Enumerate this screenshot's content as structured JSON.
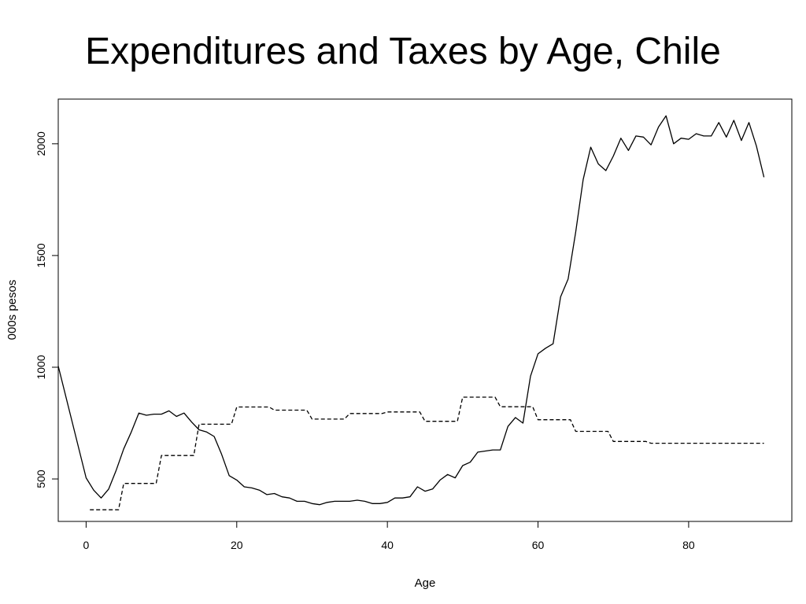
{
  "chart_data": {
    "type": "line",
    "title": "Expenditures and Taxes by Age, Chile",
    "xlabel": "Age",
    "ylabel": "000s pesos",
    "xlim": [
      -3.7,
      93.7
    ],
    "ylim": [
      310,
      2200
    ],
    "xticks": [
      0,
      20,
      40,
      60,
      80
    ],
    "yticks": [
      500,
      1000,
      1500,
      2000
    ],
    "grid": false,
    "series": [
      {
        "style": "solid",
        "color": "#000000",
        "x": [
          -3.7,
          0,
          1,
          2,
          3,
          4,
          5,
          6,
          7,
          8,
          9,
          10,
          11,
          12,
          13,
          14,
          15,
          16,
          17,
          18,
          19,
          20,
          21,
          22,
          23,
          24,
          25,
          26,
          27,
          28,
          29,
          30,
          31,
          32,
          33,
          34,
          35,
          36,
          37,
          38,
          39,
          40,
          41,
          42,
          43,
          44,
          45,
          46,
          47,
          48,
          49,
          50,
          51,
          52,
          53,
          54,
          55,
          56,
          57,
          58,
          59,
          60,
          61,
          62,
          63,
          64,
          65,
          66,
          67,
          68,
          69,
          70,
          71,
          72,
          73,
          74,
          75,
          76,
          77,
          78,
          79,
          80,
          81,
          82,
          83,
          84,
          85,
          86,
          87,
          88,
          89,
          90
        ],
        "y": [
          1005,
          505,
          450,
          415,
          455,
          540,
          635,
          710,
          795,
          785,
          790,
          790,
          805,
          780,
          795,
          755,
          720,
          710,
          690,
          610,
          515,
          495,
          465,
          460,
          450,
          430,
          435,
          420,
          415,
          400,
          400,
          390,
          385,
          395,
          400,
          400,
          400,
          405,
          400,
          390,
          390,
          395,
          415,
          415,
          420,
          465,
          445,
          455,
          495,
          520,
          505,
          560,
          575,
          620,
          625,
          630,
          630,
          735,
          775,
          750,
          960,
          1060,
          1085,
          1105,
          1315,
          1395,
          1605,
          1840,
          1985,
          1910,
          1880,
          1945,
          2025,
          1970,
          2035,
          2030,
          1995,
          2075,
          2125,
          2000,
          2025,
          2020,
          2045,
          2035,
          2035,
          2095,
          2030,
          2105,
          2015,
          2095,
          1990,
          1850
        ]
      },
      {
        "style": "dashed",
        "color": "#000000",
        "x": [
          0.5,
          4.3,
          5,
          9.3,
          10,
          14.3,
          15,
          19.3,
          20,
          24.3,
          25,
          29.3,
          30,
          34.3,
          35,
          39.3,
          40,
          44.3,
          45,
          49.3,
          50,
          54.3,
          55,
          59.3,
          60,
          64.3,
          65,
          69.3,
          70,
          74.3,
          75,
          79.3,
          80,
          84.3,
          85,
          90
        ],
        "y": [
          362,
          362,
          480,
          480,
          605,
          605,
          745,
          745,
          822,
          822,
          808,
          808,
          768,
          768,
          793,
          793,
          800,
          800,
          758,
          758,
          866,
          866,
          823,
          823,
          765,
          765,
          713,
          713,
          668,
          668,
          660,
          660,
          660,
          660,
          660,
          660
        ]
      }
    ]
  }
}
